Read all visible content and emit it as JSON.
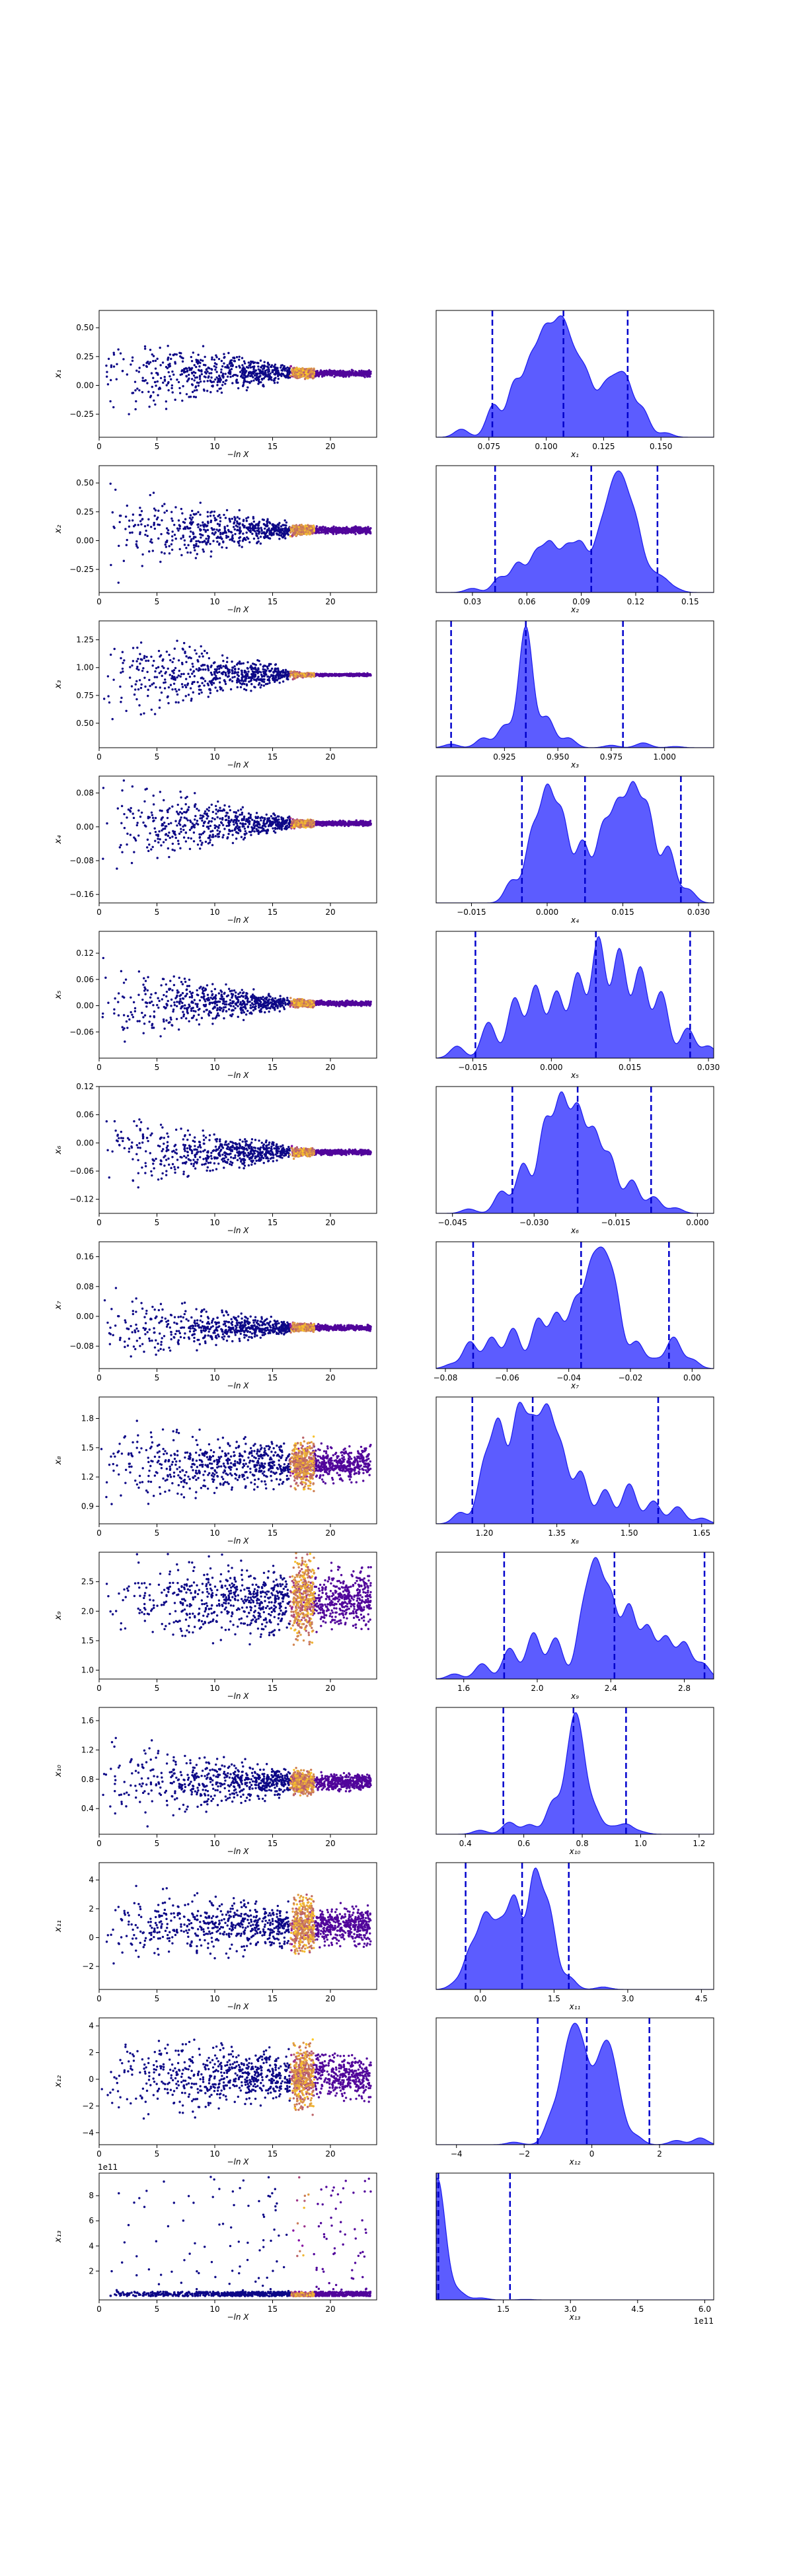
{
  "chart_data": [
    {
      "type": "scatter",
      "ylabel": "x₁",
      "xlabel": "−ln X",
      "xlim": [
        0,
        24
      ],
      "ylim": [
        -0.45,
        0.65
      ],
      "xticks": [
        0,
        5,
        10,
        15,
        20
      ],
      "yticks": [
        -0.25,
        0,
        0.25,
        0.5
      ],
      "ytick_labels": [
        "−0.25",
        "0.00",
        "0.25",
        "0.50"
      ],
      "center": 0.105,
      "spread_start": 0.28,
      "spread_end": 0.02
    },
    {
      "type": "area",
      "xlabel": "x₁",
      "xlim": [
        0.052,
        0.173
      ],
      "xticks": [
        0.075,
        0.1,
        0.125,
        0.15
      ],
      "xtick_labels": [
        "0.075",
        "0.100",
        "0.125",
        "0.150"
      ],
      "quantiles": [
        0.0765,
        0.1075,
        0.1355
      ],
      "peaks": [
        [
          0.063,
          0.09
        ],
        [
          0.077,
          0.36
        ],
        [
          0.086,
          0.58
        ],
        [
          0.093,
          0.75
        ],
        [
          0.099,
          0.95
        ],
        [
          0.104,
          0.7
        ],
        [
          0.108,
          0.85
        ],
        [
          0.113,
          0.6
        ],
        [
          0.118,
          0.55
        ],
        [
          0.125,
          0.45
        ],
        [
          0.13,
          0.45
        ],
        [
          0.135,
          0.55
        ],
        [
          0.142,
          0.3
        ],
        [
          0.152,
          0.05
        ]
      ]
    },
    {
      "type": "scatter",
      "ylabel": "x₂",
      "xlabel": "−ln X",
      "xlim": [
        0,
        24
      ],
      "ylim": [
        -0.45,
        0.65
      ],
      "xticks": [
        0,
        5,
        10,
        15,
        20
      ],
      "yticks": [
        -0.25,
        0,
        0.25,
        0.5
      ],
      "ytick_labels": [
        "−0.25",
        "0.00",
        "0.25",
        "0.50"
      ],
      "center": 0.09,
      "spread_start": 0.28,
      "spread_end": 0.02
    },
    {
      "type": "area",
      "xlabel": "x₂",
      "xlim": [
        0.01,
        0.163
      ],
      "xticks": [
        0.03,
        0.06,
        0.09,
        0.12,
        0.15
      ],
      "xtick_labels": [
        "0.03",
        "0.06",
        "0.09",
        "0.12",
        "0.15"
      ],
      "quantiles": [
        0.0425,
        0.0955,
        0.132
      ],
      "peaks": [
        [
          0.03,
          0.05
        ],
        [
          0.045,
          0.18
        ],
        [
          0.055,
          0.35
        ],
        [
          0.065,
          0.45
        ],
        [
          0.073,
          0.55
        ],
        [
          0.082,
          0.5
        ],
        [
          0.09,
          0.55
        ],
        [
          0.1,
          0.62
        ],
        [
          0.107,
          0.95
        ],
        [
          0.113,
          1.0
        ],
        [
          0.12,
          0.75
        ],
        [
          0.128,
          0.2
        ],
        [
          0.135,
          0.15
        ],
        [
          0.142,
          0.04
        ]
      ]
    },
    {
      "type": "scatter",
      "ylabel": "x₃",
      "xlabel": "−ln X",
      "xlim": [
        0,
        24
      ],
      "ylim": [
        0.28,
        1.42
      ],
      "xticks": [
        0,
        5,
        10,
        15,
        20
      ],
      "yticks": [
        0.5,
        0.75,
        1,
        1.25
      ],
      "ytick_labels": [
        "0.50",
        "0.75",
        "1.00",
        "1.25"
      ],
      "center": 0.935,
      "spread_start": 0.32,
      "spread_end": 0.008
    },
    {
      "type": "area",
      "xlabel": "x₃",
      "xlim": [
        0.893,
        1.023
      ],
      "xticks": [
        0.925,
        0.95,
        0.975,
        1
      ],
      "xtick_labels": [
        "0.925",
        "0.950",
        "0.975",
        "1.000"
      ],
      "quantiles": [
        0.9,
        0.935,
        0.9805
      ],
      "peaks": [
        [
          0.9,
          0.03
        ],
        [
          0.915,
          0.08
        ],
        [
          0.925,
          0.18
        ],
        [
          0.935,
          1.0
        ],
        [
          0.945,
          0.25
        ],
        [
          0.955,
          0.08
        ],
        [
          0.975,
          0.02
        ],
        [
          0.99,
          0.04
        ],
        [
          1.005,
          0.01
        ]
      ]
    },
    {
      "type": "scatter",
      "ylabel": "x₄",
      "xlabel": "−ln X",
      "xlim": [
        0,
        24
      ],
      "ylim": [
        -0.18,
        0.12
      ],
      "xticks": [
        0,
        5,
        10,
        15,
        20
      ],
      "yticks": [
        -0.16,
        -0.08,
        0,
        0.08
      ],
      "ytick_labels": [
        "−0.16",
        "−0.08",
        "0.00",
        "0.08"
      ],
      "center": 0.008,
      "spread_start": 0.075,
      "spread_end": 0.004
    },
    {
      "type": "area",
      "xlabel": "x₄",
      "xlim": [
        -0.022,
        0.033
      ],
      "xticks": [
        -0.015,
        0,
        0.015,
        0.03
      ],
      "xtick_labels": [
        "−0.015",
        "0.000",
        "0.015",
        "0.030"
      ],
      "quantiles": [
        -0.005,
        0.0075,
        0.0265
      ],
      "peaks": [
        [
          -0.007,
          0.2
        ],
        [
          -0.003,
          0.6
        ],
        [
          0,
          0.95
        ],
        [
          0.003,
          0.75
        ],
        [
          0.007,
          0.55
        ],
        [
          0.011,
          0.65
        ],
        [
          0.014,
          0.8
        ],
        [
          0.017,
          0.95
        ],
        [
          0.02,
          0.8
        ],
        [
          0.024,
          0.5
        ],
        [
          0.028,
          0.12
        ]
      ]
    },
    {
      "type": "scatter",
      "ylabel": "x₅",
      "xlabel": "−ln X",
      "xlim": [
        0,
        24
      ],
      "ylim": [
        -0.12,
        0.17
      ],
      "xticks": [
        0,
        5,
        10,
        15,
        20
      ],
      "yticks": [
        -0.06,
        0,
        0.06,
        0.12
      ],
      "ytick_labels": [
        "−0.06",
        "0.00",
        "0.06",
        "0.12"
      ],
      "center": 0.005,
      "spread_start": 0.065,
      "spread_end": 0.004
    },
    {
      "type": "area",
      "xlabel": "x₅",
      "xlim": [
        -0.022,
        0.031
      ],
      "xticks": [
        -0.015,
        0,
        0.015,
        0.03
      ],
      "xtick_labels": [
        "−0.015",
        "0.000",
        "0.015",
        "0.030"
      ],
      "quantiles": [
        -0.0145,
        0.0085,
        0.0265
      ],
      "peaks": [
        [
          -0.018,
          0.1
        ],
        [
          -0.012,
          0.3
        ],
        [
          -0.007,
          0.5
        ],
        [
          -0.003,
          0.6
        ],
        [
          0.001,
          0.55
        ],
        [
          0.005,
          0.7
        ],
        [
          0.009,
          1.0
        ],
        [
          0.013,
          0.9
        ],
        [
          0.017,
          0.75
        ],
        [
          0.021,
          0.55
        ],
        [
          0.026,
          0.25
        ],
        [
          0.03,
          0.1
        ]
      ]
    },
    {
      "type": "scatter",
      "ylabel": "x₆",
      "xlabel": "−ln X",
      "xlim": [
        0,
        24
      ],
      "ylim": [
        -0.15,
        0.12
      ],
      "xticks": [
        0,
        5,
        10,
        15,
        20
      ],
      "yticks": [
        -0.12,
        -0.06,
        0,
        0.06,
        0.12
      ],
      "ytick_labels": [
        "−0.12",
        "−0.06",
        "0.00",
        "0.06",
        "0.12"
      ],
      "center": -0.02,
      "spread_start": 0.065,
      "spread_end": 0.004
    },
    {
      "type": "area",
      "xlabel": "x₆",
      "xlim": [
        -0.048,
        0.003
      ],
      "xticks": [
        -0.045,
        -0.03,
        -0.015,
        0
      ],
      "xtick_labels": [
        "−0.045",
        "−0.030",
        "−0.015",
        "0.000"
      ],
      "quantiles": [
        -0.034,
        -0.022,
        -0.0085
      ],
      "peaks": [
        [
          -0.042,
          0.04
        ],
        [
          -0.036,
          0.2
        ],
        [
          -0.032,
          0.45
        ],
        [
          -0.028,
          0.8
        ],
        [
          -0.025,
          1.0
        ],
        [
          -0.022,
          0.9
        ],
        [
          -0.019,
          0.7
        ],
        [
          -0.016,
          0.5
        ],
        [
          -0.012,
          0.3
        ],
        [
          -0.008,
          0.15
        ],
        [
          -0.004,
          0.05
        ]
      ]
    },
    {
      "type": "scatter",
      "ylabel": "x₇",
      "xlabel": "−ln X",
      "xlim": [
        0,
        24
      ],
      "ylim": [
        -0.14,
        0.2
      ],
      "xticks": [
        0,
        5,
        10,
        15,
        20
      ],
      "yticks": [
        -0.08,
        0,
        0.08,
        0.16
      ],
      "ytick_labels": [
        "−0.08",
        "0.00",
        "0.08",
        "0.16"
      ],
      "center": -0.03,
      "spread_start": 0.07,
      "spread_end": 0.005
    },
    {
      "type": "area",
      "xlabel": "x₇",
      "xlim": [
        -0.083,
        0.007
      ],
      "xticks": [
        -0.08,
        -0.06,
        -0.04,
        -0.02,
        0
      ],
      "xtick_labels": [
        "−0.08",
        "−0.06",
        "−0.04",
        "−0.02",
        "0.00"
      ],
      "quantiles": [
        -0.071,
        -0.036,
        -0.0075
      ],
      "peaks": [
        [
          -0.078,
          0.05
        ],
        [
          -0.072,
          0.3
        ],
        [
          -0.065,
          0.35
        ],
        [
          -0.058,
          0.45
        ],
        [
          -0.05,
          0.55
        ],
        [
          -0.044,
          0.6
        ],
        [
          -0.038,
          0.7
        ],
        [
          -0.033,
          0.95
        ],
        [
          -0.029,
          1.0
        ],
        [
          -0.025,
          0.8
        ],
        [
          -0.018,
          0.3
        ],
        [
          -0.012,
          0.1
        ],
        [
          -0.006,
          0.35
        ],
        [
          0,
          0.1
        ]
      ]
    },
    {
      "type": "scatter",
      "ylabel": "x₈",
      "xlabel": "−ln X",
      "xlim": [
        0,
        24
      ],
      "ylim": [
        0.72,
        2.02
      ],
      "xticks": [
        0,
        5,
        10,
        15,
        20
      ],
      "yticks": [
        0.9,
        1.2,
        1.5,
        1.8
      ],
      "ytick_labels": [
        "0.9",
        "1.2",
        "1.5",
        "1.8"
      ],
      "center": 1.33,
      "spread_start": 0.3,
      "spread_end": 0.12
    },
    {
      "type": "area",
      "xlabel": "x₈",
      "xlim": [
        1.1,
        1.675
      ],
      "xticks": [
        1.2,
        1.35,
        1.5,
        1.65
      ],
      "xtick_labels": [
        "1.20",
        "1.35",
        "1.50",
        "1.65"
      ],
      "quantiles": [
        1.175,
        1.3,
        1.56
      ],
      "peaks": [
        [
          1.15,
          0.1
        ],
        [
          1.2,
          0.5
        ],
        [
          1.23,
          0.85
        ],
        [
          1.27,
          0.95
        ],
        [
          1.3,
          0.75
        ],
        [
          1.33,
          0.9
        ],
        [
          1.36,
          0.6
        ],
        [
          1.4,
          0.45
        ],
        [
          1.45,
          0.3
        ],
        [
          1.5,
          0.35
        ],
        [
          1.55,
          0.2
        ],
        [
          1.6,
          0.15
        ],
        [
          1.65,
          0.05
        ]
      ]
    },
    {
      "type": "scatter",
      "ylabel": "x₉",
      "xlabel": "−ln X",
      "xlim": [
        0,
        24
      ],
      "ylim": [
        0.85,
        3.0
      ],
      "xticks": [
        0,
        5,
        10,
        15,
        20
      ],
      "yticks": [
        1,
        1.5,
        2,
        2.5
      ],
      "ytick_labels": [
        "1.0",
        "1.5",
        "2.0",
        "2.5"
      ],
      "center": 2.2,
      "spread_start": 0.55,
      "spread_end": 0.35
    },
    {
      "type": "area",
      "xlabel": "x₉",
      "xlim": [
        1.45,
        2.96
      ],
      "xticks": [
        1.6,
        2,
        2.4,
        2.8
      ],
      "xtick_labels": [
        "1.6",
        "2.0",
        "2.4",
        "2.8"
      ],
      "quantiles": [
        1.82,
        2.42,
        2.91
      ],
      "peaks": [
        [
          1.55,
          0.05
        ],
        [
          1.7,
          0.15
        ],
        [
          1.85,
          0.3
        ],
        [
          1.98,
          0.45
        ],
        [
          2.1,
          0.4
        ],
        [
          2.25,
          0.6
        ],
        [
          2.32,
          1.0
        ],
        [
          2.4,
          0.75
        ],
        [
          2.5,
          0.7
        ],
        [
          2.6,
          0.5
        ],
        [
          2.7,
          0.4
        ],
        [
          2.8,
          0.35
        ],
        [
          2.9,
          0.15
        ]
      ]
    },
    {
      "type": "scatter",
      "ylabel": "x₁₀",
      "xlabel": "−ln X",
      "xlim": [
        0,
        24
      ],
      "ylim": [
        0.05,
        1.78
      ],
      "xticks": [
        0,
        5,
        10,
        15,
        20
      ],
      "yticks": [
        0.4,
        0.8,
        1.2,
        1.6
      ],
      "ytick_labels": [
        "0.4",
        "0.8",
        "1.2",
        "1.6"
      ],
      "center": 0.76,
      "spread_start": 0.42,
      "spread_end": 0.08
    },
    {
      "type": "area",
      "xlabel": "x₁₀",
      "xlim": [
        0.3,
        1.25
      ],
      "xticks": [
        0.4,
        0.6,
        0.8,
        1,
        1.2
      ],
      "xtick_labels": [
        "0.4",
        "0.6",
        "0.8",
        "1.0",
        "1.2"
      ],
      "quantiles": [
        0.53,
        0.77,
        0.95
      ],
      "peaks": [
        [
          0.45,
          0.05
        ],
        [
          0.55,
          0.15
        ],
        [
          0.62,
          0.12
        ],
        [
          0.7,
          0.4
        ],
        [
          0.76,
          0.85
        ],
        [
          0.79,
          1.0
        ],
        [
          0.84,
          0.3
        ],
        [
          0.9,
          0.08
        ],
        [
          0.95,
          0.12
        ],
        [
          1.0,
          0.03
        ]
      ]
    },
    {
      "type": "scatter",
      "ylabel": "x₁₁",
      "xlabel": "−ln X",
      "xlim": [
        0,
        24
      ],
      "ylim": [
        -3.6,
        5.2
      ],
      "xticks": [
        0,
        5,
        10,
        15,
        20
      ],
      "yticks": [
        -2,
        0,
        2,
        4
      ],
      "ytick_labels": [
        "−2",
        "0",
        "2",
        "4"
      ],
      "center": 0.8,
      "spread_start": 1.8,
      "spread_end": 0.9
    },
    {
      "type": "area",
      "xlabel": "x₁₁",
      "xlim": [
        -0.9,
        4.75
      ],
      "xticks": [
        0,
        1.5,
        3,
        4.5
      ],
      "xtick_labels": [
        "0.0",
        "1.5",
        "3.0",
        "4.5"
      ],
      "quantiles": [
        -0.3,
        0.85,
        1.8
      ],
      "peaks": [
        [
          -0.5,
          0.05
        ],
        [
          -0.2,
          0.3
        ],
        [
          0.1,
          0.55
        ],
        [
          0.4,
          0.45
        ],
        [
          0.7,
          0.7
        ],
        [
          1.1,
          0.9
        ],
        [
          1.4,
          0.6
        ],
        [
          1.8,
          0.1
        ],
        [
          2.5,
          0.02
        ]
      ]
    },
    {
      "type": "scatter",
      "ylabel": "x₁₂",
      "xlabel": "−ln X",
      "xlim": [
        0,
        24
      ],
      "ylim": [
        -4.9,
        4.6
      ],
      "xticks": [
        0,
        5,
        10,
        15,
        20
      ],
      "yticks": [
        -4,
        -2,
        0,
        2,
        4
      ],
      "ytick_labels": [
        "−4",
        "−2",
        "0",
        "2",
        "4"
      ],
      "center": 0.2,
      "spread_start": 2.2,
      "spread_end": 1.2
    },
    {
      "type": "area",
      "xlabel": "x₁₂",
      "xlim": [
        -4.6,
        3.6
      ],
      "xticks": [
        -4,
        -2,
        0,
        2
      ],
      "xtick_labels": [
        "−4",
        "−2",
        "0",
        "2"
      ],
      "quantiles": [
        -1.6,
        -0.15,
        1.7
      ],
      "peaks": [
        [
          -2.3,
          0.03
        ],
        [
          -1.2,
          0.3
        ],
        [
          -0.8,
          0.7
        ],
        [
          -0.5,
          0.95
        ],
        [
          -0.2,
          0.7
        ],
        [
          0.2,
          0.65
        ],
        [
          0.5,
          0.85
        ],
        [
          0.8,
          0.4
        ],
        [
          1.3,
          0.1
        ],
        [
          2.5,
          0.05
        ],
        [
          3.2,
          0.08
        ]
      ]
    },
    {
      "type": "scatter",
      "ylabel": "x₁₃",
      "xlabel": "−ln X",
      "offset_text": "1e11",
      "xlim": [
        0,
        24
      ],
      "ylim": [
        -0.3,
        9.8
      ],
      "xticks": [
        0,
        5,
        10,
        15,
        20
      ],
      "yticks": [
        2,
        4,
        6,
        8
      ],
      "ytick_labels": [
        "2",
        "4",
        "6",
        "8"
      ],
      "center": 0.1,
      "spread_start": 0.2,
      "spread_end": 0.05
    },
    {
      "type": "area",
      "xlabel": "x₁₃",
      "offset_text": "1e11",
      "xlim": [
        0,
        6.2
      ],
      "xticks": [
        1.5,
        3,
        4.5,
        6
      ],
      "xtick_labels": [
        "1.5",
        "3.0",
        "4.5",
        "6.0"
      ],
      "quantiles": [
        0,
        0.05,
        1.65
      ],
      "peaks": [
        [
          0,
          1.0
        ],
        [
          0.15,
          0.35
        ],
        [
          0.5,
          0.08
        ],
        [
          1,
          0.02
        ],
        [
          2,
          0.005
        ]
      ]
    }
  ],
  "colors": {
    "fill": "#3333ff",
    "edge": "#1a1aee",
    "quantile_line": "#0000cc",
    "point_low": "#0d0887",
    "point_mid": "#7e03a8",
    "point_high": "#fdca26"
  }
}
